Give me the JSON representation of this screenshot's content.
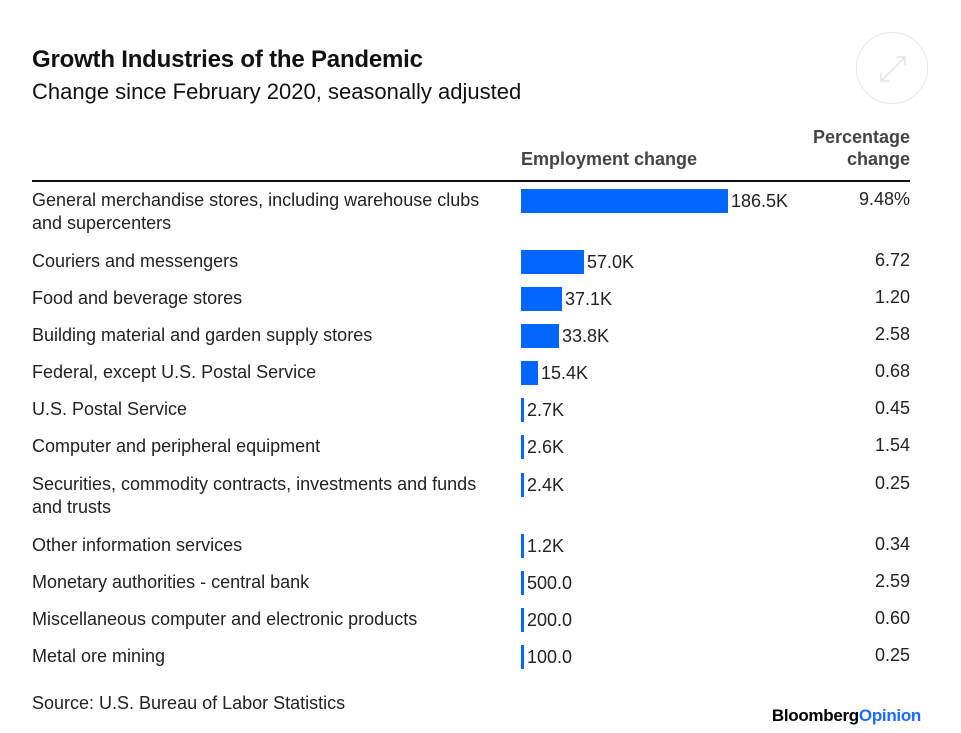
{
  "header": {
    "title": "Growth Industries of the Pandemic",
    "subtitle": "Change since February 2020, seasonally adjusted"
  },
  "columns": {
    "employment": "Employment change",
    "percentage_line1": "Percentage",
    "percentage_line2": "change"
  },
  "chart_data": {
    "type": "bar",
    "orientation": "horizontal",
    "title": "Growth Industries of the Pandemic",
    "subtitle": "Change since February 2020, seasonally adjusted",
    "categories": [
      "General merchandise stores, including warehouse clubs and supercenters",
      "Couriers and messengers",
      "Food and beverage stores",
      "Building material and garden supply stores",
      "Federal, except U.S. Postal Service",
      "U.S. Postal Service",
      "Computer and peripheral equipment",
      "Securities, commodity contracts, investments and funds and trusts",
      "Other information services",
      "Monetary authorities - central bank",
      "Miscellaneous computer and electronic products",
      "Metal ore mining"
    ],
    "values": [
      186500,
      57000,
      37100,
      33800,
      15400,
      2700,
      2600,
      2400,
      1200,
      500,
      200,
      100
    ],
    "value_labels": [
      "186.5K",
      "57.0K",
      "37.1K",
      "33.8K",
      "15.4K",
      "2.7K",
      "2.6K",
      "2.4K",
      "1.2K",
      "500.0",
      "200.0",
      "100.0"
    ],
    "percentage_change": [
      "9.48%",
      "6.72",
      "1.20",
      "2.58",
      "0.68",
      "0.45",
      "1.54",
      "0.25",
      "0.34",
      "2.59",
      "0.60",
      "0.25"
    ],
    "xlim": [
      0,
      186500
    ],
    "grid": false,
    "colors": {
      "bar": "#0066ff"
    }
  },
  "footer": {
    "source": "Source: U.S. Bureau of Labor Statistics",
    "brand_part1": "Bloomberg",
    "brand_part2": "Opinion"
  },
  "icons": {
    "expand": "expand-icon"
  }
}
